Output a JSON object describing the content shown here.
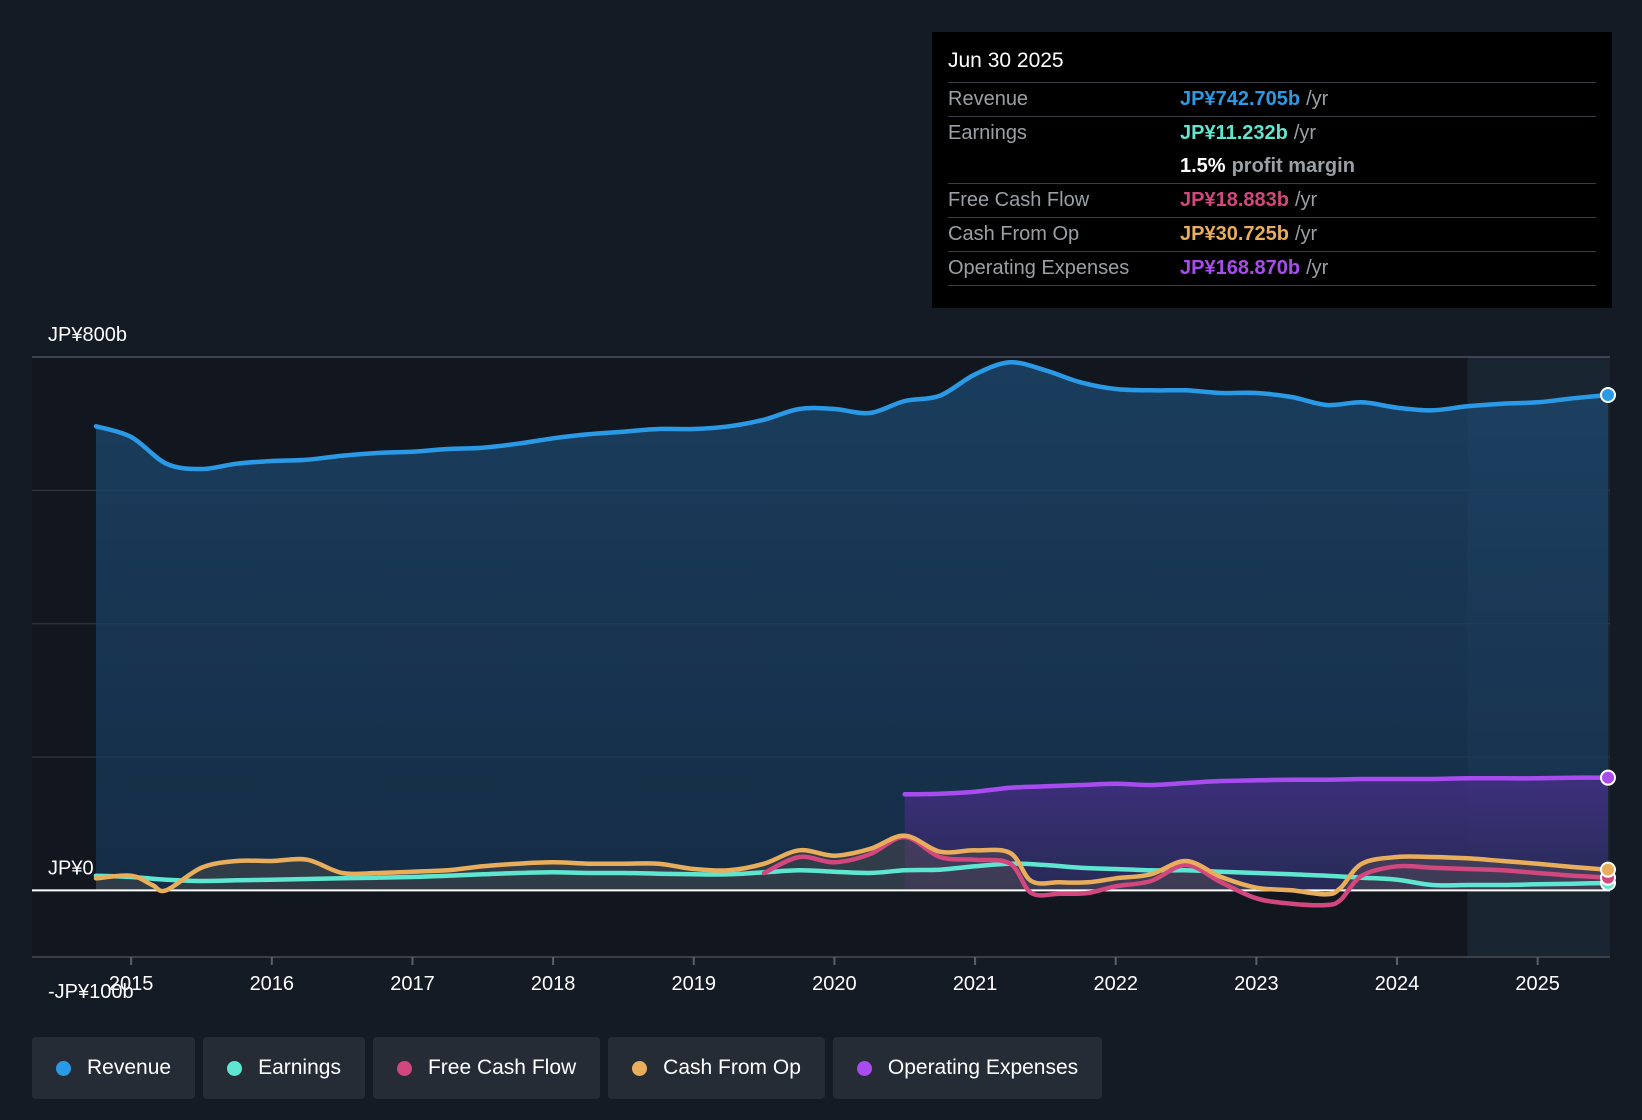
{
  "tooltip": {
    "date": "Jun 30 2025",
    "revenue": {
      "label": "Revenue",
      "value": "JP¥742.705b",
      "unit": "/yr"
    },
    "earnings": {
      "label": "Earnings",
      "value": "JP¥11.232b",
      "unit": "/yr"
    },
    "margin": {
      "value": "1.5%",
      "unit": "profit margin"
    },
    "fcf": {
      "label": "Free Cash Flow",
      "value": "JP¥18.883b",
      "unit": "/yr"
    },
    "cfo": {
      "label": "Cash From Op",
      "value": "JP¥30.725b",
      "unit": "/yr"
    },
    "opex": {
      "label": "Operating Expenses",
      "value": "JP¥168.870b",
      "unit": "/yr"
    }
  },
  "legend": [
    {
      "label": "Revenue",
      "color": "#2b9ae6"
    },
    {
      "label": "Earnings",
      "color": "#5ee6d0"
    },
    {
      "label": "Free Cash Flow",
      "color": "#d2477d"
    },
    {
      "label": "Cash From Op",
      "color": "#e8ae5c"
    },
    {
      "label": "Operating Expenses",
      "color": "#a84cf0"
    }
  ],
  "chart_data": {
    "type": "line",
    "title": "",
    "xlabel": "",
    "ylabel": "",
    "ylim": [
      -100,
      800
    ],
    "xlim": [
      2014.0,
      2025.5
    ],
    "y_axis_labels": [
      "JP¥800b",
      "JP¥0",
      "-JP¥100b"
    ],
    "y_axis_label_values": [
      800,
      0,
      -100
    ],
    "gridlines": [
      600,
      400,
      200
    ],
    "x_ticks": [
      2015,
      2016,
      2017,
      2018,
      2019,
      2020,
      2021,
      2022,
      2023,
      2024,
      2025
    ],
    "x_tick_labels": [
      "2015",
      "2016",
      "2017",
      "2018",
      "2019",
      "2020",
      "2021",
      "2022",
      "2023",
      "2024",
      "2025"
    ],
    "forecast_start": 2024.5,
    "series": [
      {
        "name": "Revenue",
        "color": "#2b9ae6",
        "fill": true,
        "x": [
          2014.75,
          2015.0,
          2015.25,
          2015.5,
          2015.75,
          2016.0,
          2016.25,
          2016.5,
          2016.75,
          2017.0,
          2017.25,
          2017.5,
          2017.75,
          2018.0,
          2018.25,
          2018.5,
          2018.75,
          2019.0,
          2019.25,
          2019.5,
          2019.75,
          2020.0,
          2020.25,
          2020.5,
          2020.75,
          2021.0,
          2021.25,
          2021.5,
          2021.75,
          2022.0,
          2022.25,
          2022.5,
          2022.75,
          2023.0,
          2023.25,
          2023.5,
          2023.75,
          2024.0,
          2024.25,
          2024.5,
          2024.75,
          2025.0,
          2025.25,
          2025.5
        ],
        "values": [
          696,
          680,
          640,
          632,
          640,
          644,
          646,
          652,
          656,
          658,
          662,
          664,
          670,
          678,
          684,
          688,
          692,
          692,
          696,
          706,
          722,
          722,
          716,
          734,
          742,
          774,
          792,
          780,
          762,
          752,
          750,
          750,
          746,
          746,
          740,
          728,
          732,
          724,
          720,
          726,
          730,
          732,
          738,
          743
        ]
      },
      {
        "name": "Operating Expenses",
        "color": "#a84cf0",
        "fill": true,
        "x": [
          2020.5,
          2020.75,
          2021.0,
          2021.25,
          2021.5,
          2021.75,
          2022.0,
          2022.25,
          2022.5,
          2022.75,
          2023.0,
          2023.25,
          2023.5,
          2023.75,
          2024.0,
          2024.25,
          2024.5,
          2024.75,
          2025.0,
          2025.25,
          2025.5
        ],
        "values": [
          144,
          145,
          148,
          154,
          156,
          158,
          160,
          158,
          161,
          164,
          165,
          166,
          166,
          167,
          167,
          167,
          168,
          168,
          168,
          169,
          169
        ]
      },
      {
        "name": "Earnings",
        "color": "#5ee6d0",
        "fill": false,
        "x": [
          2014.75,
          2015.0,
          2015.25,
          2015.5,
          2015.75,
          2016.0,
          2016.25,
          2016.5,
          2016.75,
          2017.0,
          2017.25,
          2017.5,
          2017.75,
          2018.0,
          2018.25,
          2018.5,
          2018.75,
          2019.0,
          2019.25,
          2019.5,
          2019.75,
          2020.0,
          2020.25,
          2020.5,
          2020.75,
          2021.0,
          2021.25,
          2021.5,
          2021.75,
          2022.0,
          2022.25,
          2022.5,
          2022.75,
          2023.0,
          2023.25,
          2023.5,
          2023.75,
          2024.0,
          2024.25,
          2024.5,
          2024.75,
          2025.0,
          2025.25,
          2025.5
        ],
        "values": [
          22,
          20,
          16,
          14,
          15,
          16,
          17,
          18,
          19,
          20,
          22,
          24,
          26,
          27,
          26,
          26,
          25,
          24,
          24,
          27,
          30,
          28,
          26,
          30,
          31,
          36,
          40,
          38,
          34,
          32,
          30,
          30,
          28,
          26,
          24,
          22,
          19,
          16,
          8,
          8,
          8,
          9,
          10,
          11
        ]
      },
      {
        "name": "Free Cash Flow",
        "color": "#d2477d",
        "fill": false,
        "x": [
          2019.5,
          2019.75,
          2020.0,
          2020.25,
          2020.5,
          2020.75,
          2021.0,
          2021.25,
          2021.4,
          2021.6,
          2021.8,
          2022.0,
          2022.25,
          2022.5,
          2022.75,
          2023.0,
          2023.25,
          2023.5,
          2023.6,
          2023.75,
          2024.0,
          2024.25,
          2024.5,
          2024.75,
          2025.0,
          2025.25,
          2025.5
        ],
        "values": [
          26,
          50,
          42,
          54,
          80,
          50,
          46,
          40,
          -4,
          -5,
          -4,
          6,
          14,
          38,
          12,
          -12,
          -20,
          -22,
          -14,
          22,
          36,
          34,
          32,
          30,
          26,
          22,
          19
        ]
      },
      {
        "name": "Cash From Op",
        "color": "#e8ae5c",
        "fill": true,
        "x": [
          2014.75,
          2015.0,
          2015.15,
          2015.25,
          2015.5,
          2015.75,
          2016.0,
          2016.25,
          2016.5,
          2016.75,
          2017.0,
          2017.25,
          2017.5,
          2017.75,
          2018.0,
          2018.25,
          2018.5,
          2018.75,
          2019.0,
          2019.25,
          2019.5,
          2019.75,
          2020.0,
          2020.25,
          2020.5,
          2020.75,
          2021.0,
          2021.25,
          2021.4,
          2021.6,
          2021.8,
          2022.0,
          2022.25,
          2022.5,
          2022.75,
          2023.0,
          2023.25,
          2023.5,
          2023.6,
          2023.75,
          2024.0,
          2024.25,
          2024.5,
          2024.75,
          2025.0,
          2025.25,
          2025.5
        ],
        "values": [
          18,
          22,
          8,
          0,
          34,
          44,
          44,
          46,
          26,
          26,
          28,
          30,
          36,
          40,
          42,
          40,
          40,
          40,
          32,
          30,
          40,
          60,
          52,
          62,
          82,
          58,
          60,
          56,
          14,
          12,
          12,
          18,
          24,
          44,
          20,
          4,
          0,
          -6,
          4,
          40,
          50,
          50,
          48,
          44,
          40,
          35,
          31
        ]
      }
    ]
  }
}
